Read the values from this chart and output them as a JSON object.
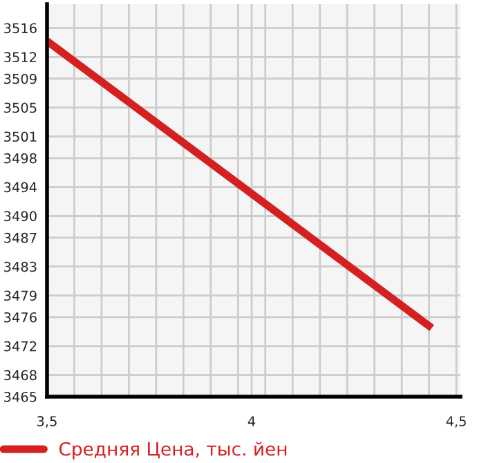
{
  "chart_data": {
    "type": "line",
    "legend": "bottom",
    "grid": true,
    "marker": "none",
    "line_style": "solid",
    "x": [
      3.5,
      4.44
    ],
    "series": [
      {
        "name": "Средняя Цена, тыс. йен",
        "color": "#d42020",
        "values": [
          3514.2,
          3474.5
        ]
      }
    ],
    "xlim": [
      3.5,
      4.51
    ],
    "xticks": [
      {
        "value": 3.5,
        "label": "3,5"
      },
      {
        "value": 3.5667,
        "label": null
      },
      {
        "value": 3.6333,
        "label": null
      },
      {
        "value": 3.7,
        "label": null
      },
      {
        "value": 3.7667,
        "label": null
      },
      {
        "value": 3.8333,
        "label": null
      },
      {
        "value": 3.9,
        "label": null
      },
      {
        "value": 3.9667,
        "label": null
      },
      {
        "value": 4,
        "label": "4"
      },
      {
        "value": 4.0333,
        "label": null
      },
      {
        "value": 4.1,
        "label": null
      },
      {
        "value": 4.1667,
        "label": null
      },
      {
        "value": 4.2333,
        "label": null
      },
      {
        "value": 4.3,
        "label": null
      },
      {
        "value": 4.3667,
        "label": null
      },
      {
        "value": 4.4333,
        "label": null
      },
      {
        "value": 4.5,
        "label": "4,5"
      }
    ],
    "ylim": [
      3465,
      3519.3
    ],
    "yticks": [
      3465,
      3468,
      3472,
      3476,
      3479,
      3483,
      3487,
      3490,
      3494,
      3498,
      3501,
      3505,
      3509,
      3512,
      3516
    ]
  }
}
